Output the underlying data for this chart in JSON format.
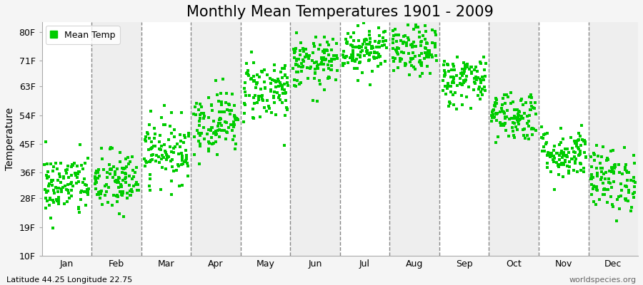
{
  "title": "Monthly Mean Temperatures 1901 - 2009",
  "ylabel": "Temperature",
  "xlabel_months": [
    "Jan",
    "Feb",
    "Mar",
    "Apr",
    "May",
    "Jun",
    "Jul",
    "Aug",
    "Sep",
    "Oct",
    "Nov",
    "Dec"
  ],
  "ytick_values": [
    10,
    19,
    28,
    36,
    45,
    54,
    63,
    71,
    80
  ],
  "ytick_labels": [
    "10F",
    "19F",
    "28F",
    "36F",
    "45F",
    "54F",
    "63F",
    "71F",
    "80F"
  ],
  "ylim": [
    10,
    83
  ],
  "dot_color": "#00CC00",
  "dot_size": 8,
  "bg_color_odd": "#ffffff",
  "bg_color_even": "#eeeeee",
  "fig_bg_color": "#f5f5f5",
  "legend_label": "Mean Temp",
  "footnote_left": "Latitude 44.25 Longitude 22.75",
  "footnote_right": "worldspecies.org",
  "title_fontsize": 15,
  "axis_fontsize": 9,
  "footnote_fontsize": 8,
  "monthly_mean_temps_F": [
    32,
    33,
    43,
    52,
    62,
    70,
    75,
    74,
    65,
    54,
    42,
    34
  ],
  "monthly_std_F": [
    5,
    5,
    5,
    5,
    5,
    4,
    4,
    4,
    4,
    4,
    4,
    5
  ],
  "n_years": 109,
  "seed": 42
}
